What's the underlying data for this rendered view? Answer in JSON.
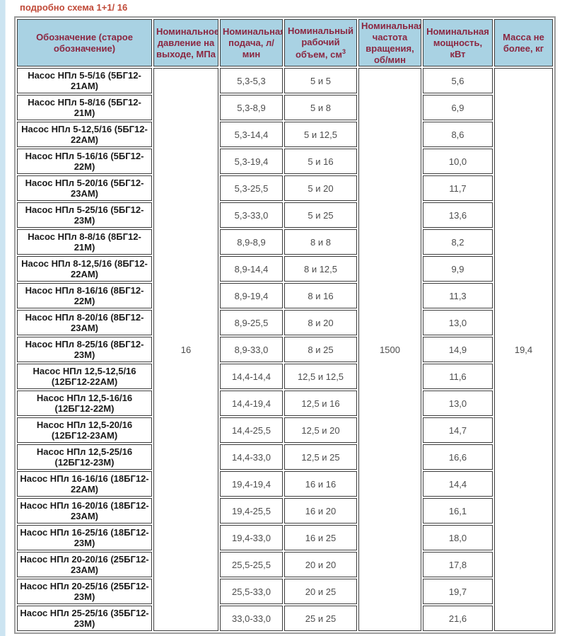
{
  "page": {
    "title": "подробно схема 1+1/ 16"
  },
  "colors": {
    "title_text": "#c04a38",
    "header_bg": "#a9d2e3",
    "header_text": "#8b2741",
    "cell_border": "#3d3d3d",
    "outer_border": "#9c9c9c",
    "left_strip": "#cce4f1"
  },
  "table": {
    "columns": [
      {
        "label": "Обозначение (старое обозначение)"
      },
      {
        "label": "Номинальное давление на выходе, МПа"
      },
      {
        "label": "Номинальная подача, л/ мин"
      },
      {
        "label": "Номинальный рабочий объем, см",
        "sup": "3"
      },
      {
        "label": "Номинальная частота вращения, об/мин"
      },
      {
        "label": "Номинальная мощность, кВт"
      },
      {
        "label": "Масса не более, кг"
      }
    ],
    "merged": {
      "pressure": "16",
      "speed": "1500",
      "mass": "19,4"
    },
    "rows": [
      {
        "name": "Насос НПл 5-5/16 (5БГ12-21АМ)",
        "supply": "5,3-5,3",
        "volume": "5 и 5",
        "power": "5,6"
      },
      {
        "name": "Насос НПл 5-8/16 (5БГ12-21М)",
        "supply": "5,3-8,9",
        "volume": "5 и 8",
        "power": "6,9"
      },
      {
        "name": "Насос НПл 5-12,5/16 (5БГ12-22АМ)",
        "supply": "5,3-14,4",
        "volume": "5 и 12,5",
        "power": "8,6"
      },
      {
        "name": "Насос НПл 5-16/16 (5БГ12-22М)",
        "supply": "5,3-19,4",
        "volume": "5 и 16",
        "power": "10,0"
      },
      {
        "name": "Насос НПл 5-20/16 (5БГ12-23АМ)",
        "supply": "5,3-25,5",
        "volume": "5 и 20",
        "power": "11,7"
      },
      {
        "name": "Насос НПл 5-25/16 (5БГ12-23М)",
        "supply": "5,3-33,0",
        "volume": "5 и 25",
        "power": "13,6"
      },
      {
        "name": "Насос НПл 8-8/16 (8БГ12-21М)",
        "supply": "8,9-8,9",
        "volume": "8 и 8",
        "power": "8,2"
      },
      {
        "name": "Насос НПл 8-12,5/16 (8БГ12-22АМ)",
        "supply": "8,9-14,4",
        "volume": "8 и 12,5",
        "power": "9,9"
      },
      {
        "name": "Насос НПл 8-16/16 (8БГ12-22М)",
        "supply": "8,9-19,4",
        "volume": "8 и 16",
        "power": "11,3"
      },
      {
        "name": "Насос НПл 8-20/16 (8БГ12-23АМ)",
        "supply": "8,9-25,5",
        "volume": "8 и 20",
        "power": "13,0"
      },
      {
        "name": "Насос НПл 8-25/16 (8БГ12-23М)",
        "supply": "8,9-33,0",
        "volume": "8 и 25",
        "power": "14,9"
      },
      {
        "name": "Насос НПл 12,5-12,5/16 (12БГ12-22АМ)",
        "supply": "14,4-14,4",
        "volume": "12,5 и 12,5",
        "power": "11,6"
      },
      {
        "name": "Насос НПл 12,5-16/16 (12БГ12-22М)",
        "supply": "14,4-19,4",
        "volume": "12,5 и 16",
        "power": "13,0"
      },
      {
        "name": "Насос НПл 12,5-20/16 (12БГ12-23АМ)",
        "supply": "14,4-25,5",
        "volume": "12,5 и 20",
        "power": "14,7"
      },
      {
        "name": "Насос НПл 12,5-25/16 (12БГ12-23М)",
        "supply": "14,4-33,0",
        "volume": "12,5 и 25",
        "power": "16,6"
      },
      {
        "name": "Насос НПл 16-16/16 (18БГ12-22АМ)",
        "supply": "19,4-19,4",
        "volume": "16 и 16",
        "power": "14,4"
      },
      {
        "name": "Насос НПл 16-20/16 (18БГ12-23АМ)",
        "supply": "19,4-25,5",
        "volume": "16 и 20",
        "power": "16,1"
      },
      {
        "name": "Насос НПл 16-25/16 (18БГ12-23М)",
        "supply": "19,4-33,0",
        "volume": "16 и 25",
        "power": "18,0"
      },
      {
        "name": "Насос НПл 20-20/16 (25БГ12-23АМ)",
        "supply": "25,5-25,5",
        "volume": "20 и 20",
        "power": "17,8"
      },
      {
        "name": "Насос НПл 20-25/16 (25БГ12-23М)",
        "supply": "25,5-33,0",
        "volume": "20 и 25",
        "power": "19,7"
      },
      {
        "name": "Насос НПл 25-25/16 (35БГ12-23М)",
        "supply": "33,0-33,0",
        "volume": "25 и 25",
        "power": "21,6"
      }
    ]
  }
}
